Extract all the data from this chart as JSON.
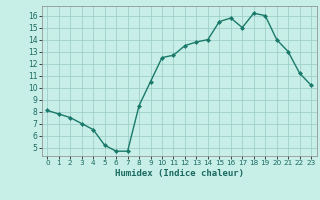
{
  "x": [
    0,
    1,
    2,
    3,
    4,
    5,
    6,
    7,
    8,
    9,
    10,
    11,
    12,
    13,
    14,
    15,
    16,
    17,
    18,
    19,
    20,
    21,
    22,
    23
  ],
  "y": [
    8.1,
    7.8,
    7.5,
    7.0,
    6.5,
    5.2,
    4.7,
    4.7,
    8.5,
    10.5,
    12.5,
    12.7,
    13.5,
    13.8,
    14.0,
    15.5,
    15.8,
    15.0,
    16.2,
    16.0,
    14.0,
    13.0,
    11.2,
    10.2
  ],
  "xlabel": "Humidex (Indice chaleur)",
  "ylim": [
    4.3,
    16.8
  ],
  "xlim": [
    -0.5,
    23.5
  ],
  "yticks": [
    5,
    6,
    7,
    8,
    9,
    10,
    11,
    12,
    13,
    14,
    15,
    16
  ],
  "xticks": [
    0,
    1,
    2,
    3,
    4,
    5,
    6,
    7,
    8,
    9,
    10,
    11,
    12,
    13,
    14,
    15,
    16,
    17,
    18,
    19,
    20,
    21,
    22,
    23
  ],
  "line_color": "#1a7a6a",
  "marker_color": "#1a7a6a",
  "bg_color": "#c8eee8",
  "grid_color": "#a0cfca"
}
